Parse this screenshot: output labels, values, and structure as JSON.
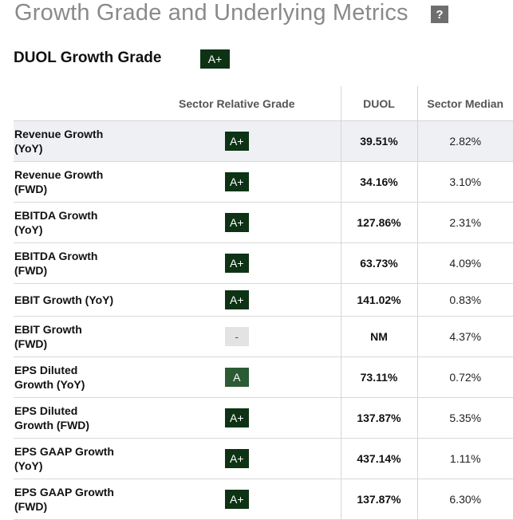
{
  "header": {
    "title": "Growth Grade and Underlying Metrics",
    "help_label": "?"
  },
  "grade": {
    "heading": "DUOL Growth Grade",
    "badge": "A+"
  },
  "table": {
    "columns": [
      "",
      "Sector Relative Grade",
      "DUOL",
      "Sector Median"
    ],
    "rows": [
      {
        "metric": [
          "Revenue Growth",
          "(YoY)"
        ],
        "grade": "A+",
        "duol": "39.51%",
        "median": "2.82%"
      },
      {
        "metric": [
          "Revenue Growth",
          "(FWD)"
        ],
        "grade": "A+",
        "duol": "34.16%",
        "median": "3.10%"
      },
      {
        "metric": [
          "EBITDA Growth",
          "(YoY)"
        ],
        "grade": "A+",
        "duol": "127.86%",
        "median": "2.31%"
      },
      {
        "metric": [
          "EBITDA Growth",
          "(FWD)"
        ],
        "grade": "A+",
        "duol": "63.73%",
        "median": "4.09%"
      },
      {
        "metric": [
          "EBIT Growth (YoY)"
        ],
        "grade": "A+",
        "duol": "141.02%",
        "median": "0.83%"
      },
      {
        "metric": [
          "EBIT Growth",
          "(FWD)"
        ],
        "grade": "-",
        "duol": "NM",
        "median": "4.37%"
      },
      {
        "metric": [
          "EPS Diluted",
          "Growth (YoY)"
        ],
        "grade": "A",
        "duol": "73.11%",
        "median": "0.72%"
      },
      {
        "metric": [
          "EPS Diluted",
          "Growth (FWD)"
        ],
        "grade": "A+",
        "duol": "137.87%",
        "median": "5.35%"
      },
      {
        "metric": [
          "EPS GAAP Growth",
          "(YoY)"
        ],
        "grade": "A+",
        "duol": "437.14%",
        "median": "1.11%"
      },
      {
        "metric": [
          "EPS GAAP Growth",
          "(FWD)"
        ],
        "grade": "A+",
        "duol": "137.87%",
        "median": "6.30%"
      }
    ]
  },
  "colors": {
    "grade_a_plus": "#0d3314",
    "grade_a": "#2b5b34",
    "grade_none": "#e3e3e3",
    "highlight_row": "#eef0f3"
  }
}
